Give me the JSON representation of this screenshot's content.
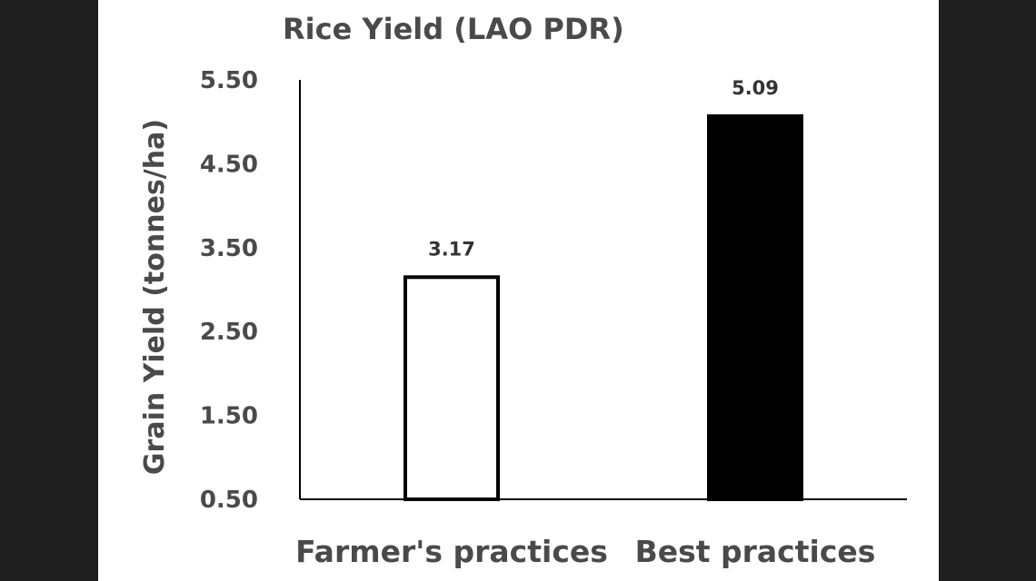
{
  "chart_data": {
    "type": "bar",
    "title": "Rice Yield (LAO PDR)",
    "ylabel": "Grain Yield (tonnes/ha)",
    "xlabel": "",
    "categories": [
      "Farmer's practices",
      "Best practices"
    ],
    "values": [
      3.17,
      5.09
    ],
    "data_labels": [
      "3.17",
      "5.09"
    ],
    "yticks": [
      0.5,
      1.5,
      2.5,
      3.5,
      4.5,
      5.5
    ],
    "ytick_labels": [
      "0.50",
      "1.50",
      "2.50",
      "3.50",
      "4.50",
      "5.50"
    ],
    "ylim": [
      0.5,
      5.5
    ],
    "grid": false,
    "bar_styles": [
      {
        "fill": "#ffffff",
        "stroke": "#000000"
      },
      {
        "fill": "#000000",
        "stroke": "#000000"
      }
    ]
  }
}
